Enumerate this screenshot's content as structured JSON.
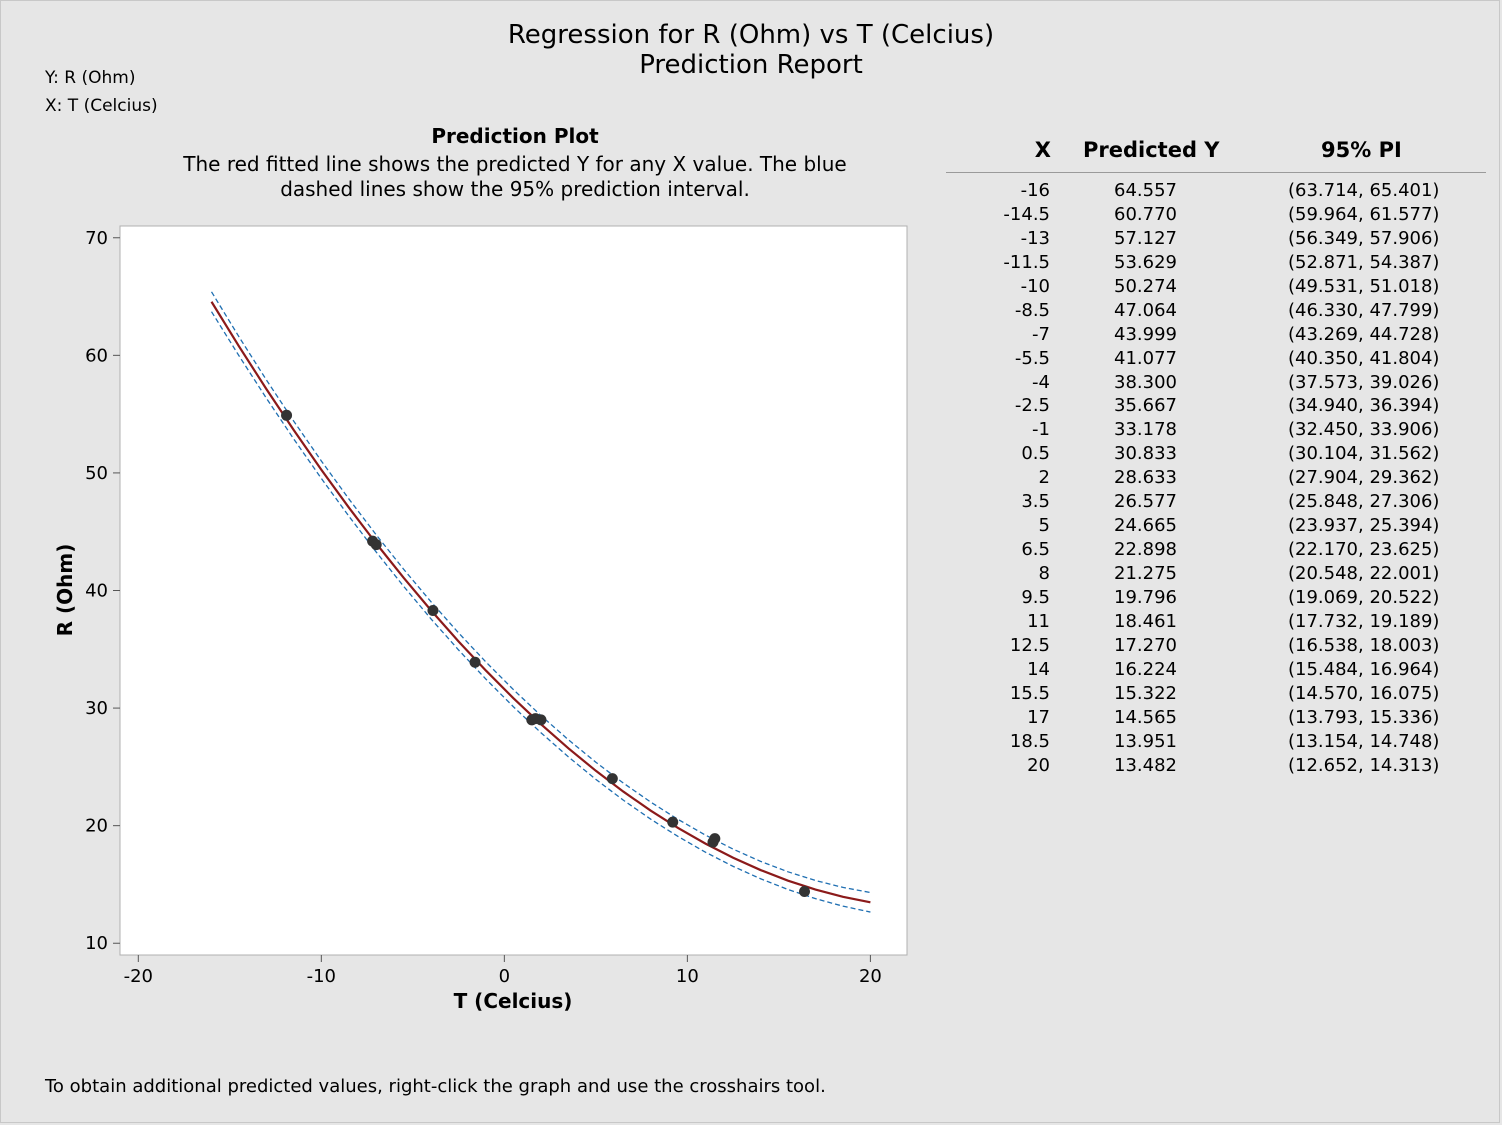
{
  "header": {
    "title": "Regression for R (Ohm) vs T (Celcius)",
    "subtitle": "Prediction Report",
    "y_var": "Y: R (Ohm)",
    "x_var": "X: T (Celcius)"
  },
  "plot": {
    "heading": "Prediction Plot",
    "description": "The red fitted line shows the predicted Y for any X value. The blue dashed lines show the 95% prediction interval."
  },
  "chart_data": {
    "type": "scatter",
    "title": "Prediction Plot",
    "xlabel": "T (Celcius)",
    "ylabel": "R (Ohm)",
    "xlim": [
      -21,
      22
    ],
    "ylim": [
      9,
      71
    ],
    "xticks": [
      -20,
      -10,
      0,
      10,
      20
    ],
    "yticks": [
      10,
      20,
      30,
      40,
      50,
      60,
      70
    ],
    "grid": false,
    "colors": {
      "fit": "#8b1a1a",
      "interval": "#1f6fb2",
      "points": "#333333"
    },
    "points": [
      {
        "x": -11.9,
        "y": 54.9
      },
      {
        "x": -7.2,
        "y": 44.2
      },
      {
        "x": -7.0,
        "y": 43.9
      },
      {
        "x": -3.9,
        "y": 38.3
      },
      {
        "x": -1.6,
        "y": 33.9
      },
      {
        "x": 1.5,
        "y": 29.0
      },
      {
        "x": 1.7,
        "y": 29.1
      },
      {
        "x": 2.0,
        "y": 29.0
      },
      {
        "x": 5.9,
        "y": 24.0
      },
      {
        "x": 9.2,
        "y": 20.3
      },
      {
        "x": 11.4,
        "y": 18.6
      },
      {
        "x": 11.5,
        "y": 18.9
      },
      {
        "x": 16.4,
        "y": 14.4
      }
    ],
    "fit_x": [
      -16,
      -14.5,
      -13,
      -11.5,
      -10,
      -8.5,
      -7,
      -5.5,
      -4,
      -2.5,
      -1,
      0.5,
      2,
      3.5,
      5,
      6.5,
      8,
      9.5,
      11,
      12.5,
      14,
      15.5,
      17,
      18.5,
      20
    ],
    "fit_y": [
      64.557,
      60.77,
      57.127,
      53.629,
      50.274,
      47.064,
      43.999,
      41.077,
      38.3,
      35.667,
      33.178,
      30.833,
      28.633,
      26.577,
      24.665,
      22.898,
      21.275,
      19.796,
      18.461,
      17.27,
      16.224,
      15.322,
      14.565,
      13.951,
      13.482
    ],
    "pi_lower": [
      63.714,
      59.964,
      56.349,
      52.871,
      49.531,
      46.33,
      43.269,
      40.35,
      37.573,
      34.94,
      32.45,
      30.104,
      27.904,
      25.848,
      23.937,
      22.17,
      20.548,
      19.069,
      17.732,
      16.538,
      15.484,
      14.57,
      13.793,
      13.154,
      12.652
    ],
    "pi_upper": [
      65.401,
      61.577,
      57.906,
      54.387,
      51.018,
      47.799,
      44.728,
      41.804,
      39.026,
      36.394,
      33.906,
      31.562,
      29.362,
      27.306,
      25.394,
      23.625,
      22.001,
      20.522,
      19.189,
      18.003,
      16.964,
      16.075,
      15.336,
      14.748,
      14.313
    ]
  },
  "report": {
    "headers": {
      "x": "X",
      "predicted": "Predicted Y",
      "pi": "95% PI"
    },
    "rows": [
      {
        "x": "-16",
        "predicted": "64.557",
        "pi": "(63.714, 65.401)"
      },
      {
        "x": "-14.5",
        "predicted": "60.770",
        "pi": "(59.964, 61.577)"
      },
      {
        "x": "-13",
        "predicted": "57.127",
        "pi": "(56.349, 57.906)"
      },
      {
        "x": "-11.5",
        "predicted": "53.629",
        "pi": "(52.871, 54.387)"
      },
      {
        "x": "-10",
        "predicted": "50.274",
        "pi": "(49.531, 51.018)"
      },
      {
        "x": "-8.5",
        "predicted": "47.064",
        "pi": "(46.330, 47.799)"
      },
      {
        "x": "-7",
        "predicted": "43.999",
        "pi": "(43.269, 44.728)"
      },
      {
        "x": "-5.5",
        "predicted": "41.077",
        "pi": "(40.350, 41.804)"
      },
      {
        "x": "-4",
        "predicted": "38.300",
        "pi": "(37.573, 39.026)"
      },
      {
        "x": "-2.5",
        "predicted": "35.667",
        "pi": "(34.940, 36.394)"
      },
      {
        "x": "-1",
        "predicted": "33.178",
        "pi": "(32.450, 33.906)"
      },
      {
        "x": "0.5",
        "predicted": "30.833",
        "pi": "(30.104, 31.562)"
      },
      {
        "x": "2",
        "predicted": "28.633",
        "pi": "(27.904, 29.362)"
      },
      {
        "x": "3.5",
        "predicted": "26.577",
        "pi": "(25.848, 27.306)"
      },
      {
        "x": "5",
        "predicted": "24.665",
        "pi": "(23.937, 25.394)"
      },
      {
        "x": "6.5",
        "predicted": "22.898",
        "pi": "(22.170, 23.625)"
      },
      {
        "x": "8",
        "predicted": "21.275",
        "pi": "(20.548, 22.001)"
      },
      {
        "x": "9.5",
        "predicted": "19.796",
        "pi": "(19.069, 20.522)"
      },
      {
        "x": "11",
        "predicted": "18.461",
        "pi": "(17.732, 19.189)"
      },
      {
        "x": "12.5",
        "predicted": "17.270",
        "pi": "(16.538, 18.003)"
      },
      {
        "x": "14",
        "predicted": "16.224",
        "pi": "(15.484, 16.964)"
      },
      {
        "x": "15.5",
        "predicted": "15.322",
        "pi": "(14.570, 16.075)"
      },
      {
        "x": "17",
        "predicted": "14.565",
        "pi": "(13.793, 15.336)"
      },
      {
        "x": "18.5",
        "predicted": "13.951",
        "pi": "(13.154, 14.748)"
      },
      {
        "x": "20",
        "predicted": "13.482",
        "pi": "(12.652, 14.313)"
      }
    ]
  },
  "footer": {
    "note": "To obtain additional predicted values, right-click the graph and use the crosshairs tool."
  }
}
